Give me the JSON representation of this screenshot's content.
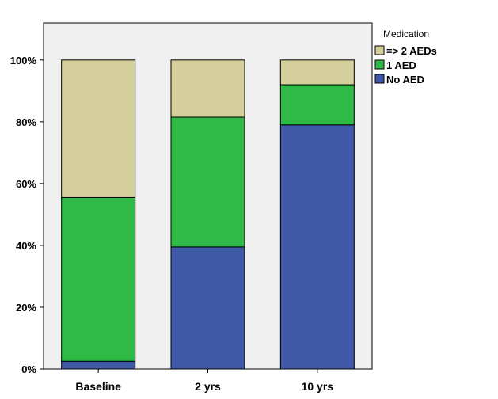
{
  "chart_data": {
    "type": "bar",
    "stacked": true,
    "categories": [
      "Baseline",
      "2 yrs",
      "10 yrs"
    ],
    "series": [
      {
        "name": "No AED",
        "values": [
          2.5,
          39.5,
          79.0
        ],
        "color": "#3f58a8"
      },
      {
        "name": "1 AED",
        "values": [
          53.0,
          42.0,
          13.0
        ],
        "color": "#2fba48"
      },
      {
        "name": "=> 2 AEDs",
        "values": [
          44.5,
          18.5,
          8.0
        ],
        "color": "#d4cf9b"
      }
    ],
    "ylim": [
      0,
      112
    ],
    "yticks": [
      {
        "value": 0,
        "label": "0%"
      },
      {
        "value": 20,
        "label": "20%"
      },
      {
        "value": 40,
        "label": "40%"
      },
      {
        "value": 60,
        "label": "60%"
      },
      {
        "value": 80,
        "label": "80%"
      },
      {
        "value": 100,
        "label": "100%"
      }
    ],
    "legend": {
      "title": "Medication",
      "placement": "right",
      "order": [
        "=> 2 AEDs",
        "1 AED",
        "No AED"
      ]
    },
    "plot_background": "#f0f0f0",
    "grid": false
  }
}
